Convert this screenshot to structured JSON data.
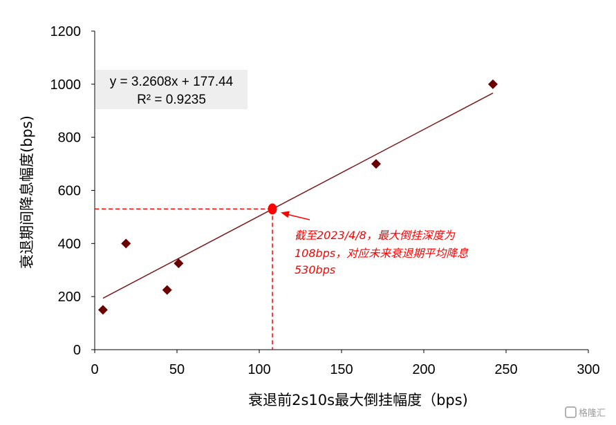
{
  "chart_data": {
    "type": "scatter",
    "xlabel": "衰退前2s10s最大倒挂幅度（bps)",
    "ylabel": "衰退期间降息幅度(bps)",
    "xlim": [
      0,
      300
    ],
    "ylim": [
      0,
      1200
    ],
    "xticks": [
      0,
      50,
      100,
      150,
      200,
      250,
      300
    ],
    "yticks": [
      0,
      200,
      400,
      600,
      800,
      1000,
      1200
    ],
    "grid": false,
    "points": [
      {
        "x": 5,
        "y": 150
      },
      {
        "x": 19,
        "y": 400
      },
      {
        "x": 44,
        "y": 225
      },
      {
        "x": 51,
        "y": 325
      },
      {
        "x": 171,
        "y": 700
      },
      {
        "x": 242,
        "y": 1000
      }
    ],
    "trendline": {
      "slope": 3.2608,
      "intercept": 177.44,
      "x_range": [
        5,
        242
      ],
      "equation": "y = 3.2608x + 177.44",
      "r2": "R² = 0.9235"
    },
    "highlight": {
      "x": 108,
      "y": 530,
      "color": "#ff0000",
      "annotation": [
        "截至2023/4/8，最大倒挂深度为",
        "108bps，对应未来衰退期平均降息",
        "530bps"
      ]
    },
    "colors": {
      "points": "#6b0000",
      "trendline": "#7a1a1a",
      "highlight": "#ff0000",
      "equation_box": "#eeeeee"
    }
  },
  "watermark": "格隆汇"
}
